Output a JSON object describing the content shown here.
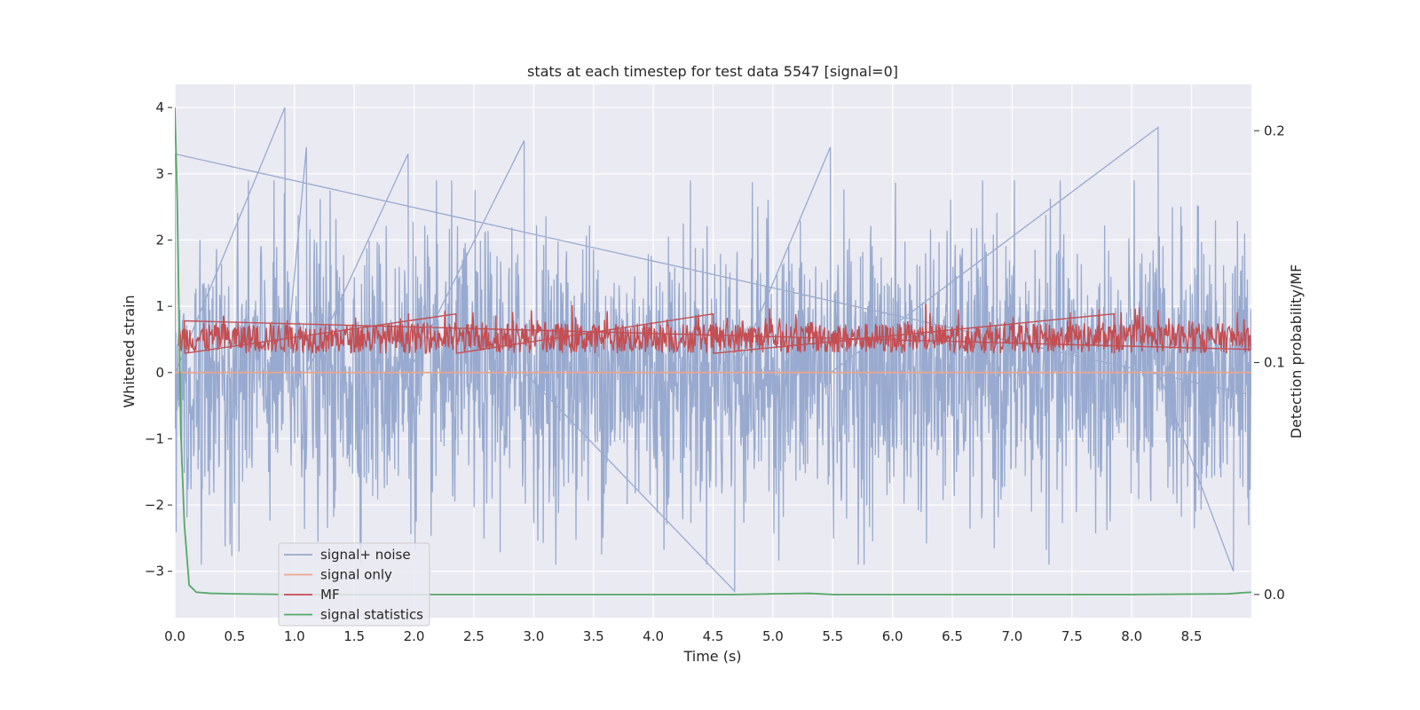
{
  "chart_data": {
    "type": "line",
    "title": "stats at each timestep for test data 5547 [signal=0]",
    "xlabel": "Time (s)",
    "ylabel": "Whitened strain",
    "y2label": "Detection probability/MF",
    "xlim": [
      0,
      9.0
    ],
    "ylim": [
      -3.7,
      4.35
    ],
    "y2lim": [
      -0.01,
      0.22
    ],
    "xticks": [
      "0.0",
      "0.5",
      "1.0",
      "1.5",
      "2.0",
      "2.5",
      "3.0",
      "3.5",
      "4.0",
      "4.5",
      "5.0",
      "5.5",
      "6.0",
      "6.5",
      "7.0",
      "7.5",
      "8.0",
      "8.5"
    ],
    "yticks": [
      "−3",
      "−2",
      "−1",
      "0",
      "1",
      "2",
      "3",
      "4"
    ],
    "y2ticks": [
      "0.0",
      "0.1",
      "0.2"
    ],
    "grid": true,
    "legend_position": "lower-left",
    "series": [
      {
        "name": "signal+ noise",
        "color": "#98aacf",
        "axis": "left",
        "description_points": {
          "x": [
            0.0,
            0.92,
            1.1,
            1.95,
            2.92,
            4.68,
            5.48,
            8.22,
            8.85
          ],
          "y": [
            3.3,
            4.0,
            3.4,
            3.3,
            3.5,
            -3.3,
            3.4,
            3.7,
            -3.0
          ]
        }
      },
      {
        "name": "signal only",
        "color": "#eca58d",
        "axis": "left",
        "x": [
          0.0,
          9.0
        ],
        "y": [
          0.0,
          0.0
        ]
      },
      {
        "name": "MF",
        "color": "#c44e52",
        "axis": "right",
        "x": [
          0.08,
          2.35,
          4.5,
          7.85
        ],
        "y": [
          0.118,
          0.121,
          0.121,
          0.121
        ]
      },
      {
        "name": "signal statistics",
        "color": "#55a868",
        "axis": "right",
        "x": [
          0.0,
          0.02,
          0.05,
          0.08,
          0.12,
          0.18,
          0.3,
          0.5,
          1.0,
          2.0,
          3.0,
          4.0,
          4.7,
          5.0,
          5.3,
          5.5,
          6.0,
          7.0,
          8.0,
          8.8,
          9.0
        ],
        "y": [
          0.21,
          0.17,
          0.07,
          0.03,
          0.004,
          0.001,
          0.0005,
          0.0003,
          0.0,
          0.0,
          0.0,
          0.0,
          0.0,
          0.0003,
          0.0005,
          0.0,
          0.0,
          0.0,
          0.0,
          0.0003,
          0.001
        ]
      }
    ]
  }
}
